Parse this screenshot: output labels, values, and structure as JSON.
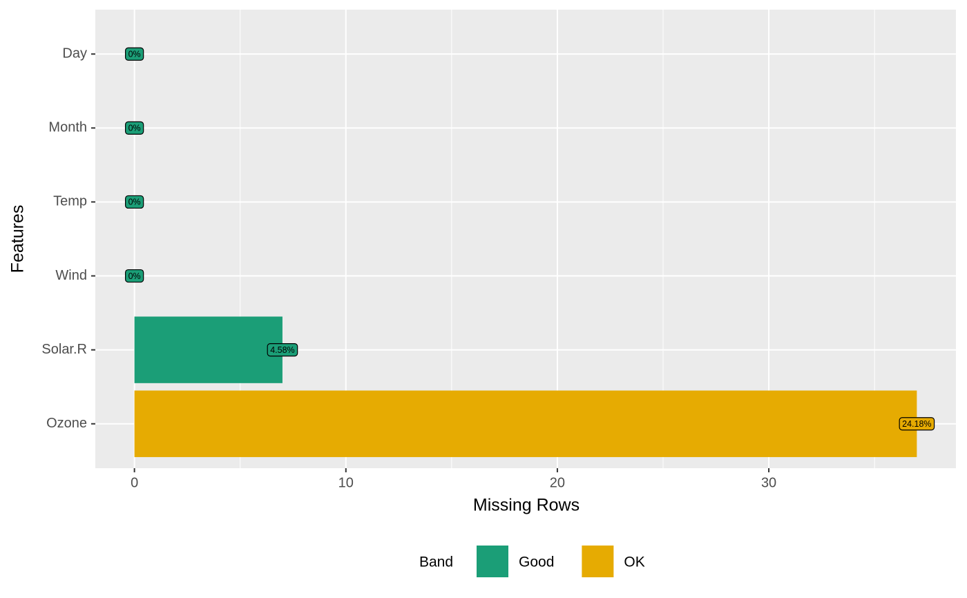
{
  "chart_data": {
    "type": "bar",
    "orientation": "horizontal",
    "x_label": "Missing Rows",
    "y_label": "Features",
    "categories": [
      "Ozone",
      "Solar.R",
      "Wind",
      "Temp",
      "Month",
      "Day"
    ],
    "values": [
      37,
      7,
      0,
      0,
      0,
      0
    ],
    "bands": [
      "OK",
      "Good",
      "Good",
      "Good",
      "Good",
      "Good"
    ],
    "percent": {
      "values": [
        24.18,
        4.58,
        0,
        0,
        0,
        0
      ],
      "value_labels": [
        "24.18%",
        "4.58%",
        "0%",
        "0%",
        "0%",
        "0%"
      ]
    },
    "xlim": [
      -1.85,
      38.85
    ],
    "xticks": [
      0,
      10,
      20,
      30
    ],
    "xminor": [
      5,
      15,
      25,
      35
    ],
    "grid": true,
    "legend": {
      "title": "Band",
      "position": "bottom",
      "items": [
        {
          "name": "Good",
          "color": "#1B9E77"
        },
        {
          "name": "OK",
          "color": "#E6AB02"
        }
      ]
    }
  }
}
